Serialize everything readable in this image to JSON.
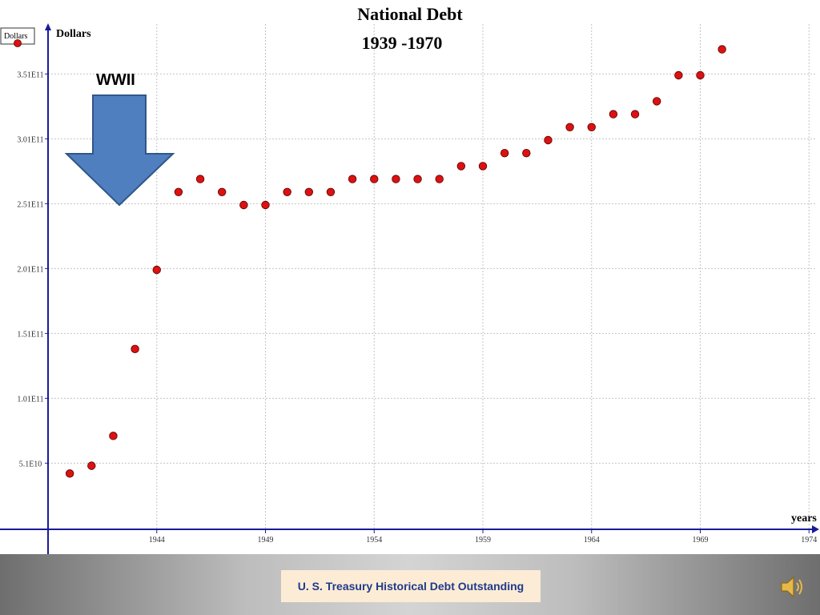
{
  "chart_data": {
    "type": "scatter",
    "title": "National Debt",
    "subtitle": "1939 -1970",
    "ylabel": "Dollars",
    "xlabel": "years",
    "legend": {
      "label": "Dollars",
      "placement": "top-left"
    },
    "xlim": [
      1939,
      1974.5
    ],
    "ylim": [
      0,
      400000000000.0
    ],
    "x_ticks": [
      1944,
      1949,
      1954,
      1959,
      1964,
      1969,
      1974
    ],
    "x_tick_labels": [
      "1944",
      "1949",
      "1954",
      "1959",
      "1964",
      "1969",
      "1974"
    ],
    "y_ticks": [
      51000000000.0,
      101000000000.0,
      151000000000.0,
      201000000000.0,
      251000000000.0,
      301000000000.0,
      351000000000.0
    ],
    "y_tick_labels": [
      "5.1E10",
      "1.01E11",
      "1.51E11",
      "2.01E11",
      "2.51E11",
      "3.01E11",
      "3.51E11"
    ],
    "grid": true,
    "series": [
      {
        "name": "Dollars",
        "color": "#dd1111",
        "x": [
          1940,
          1941,
          1942,
          1943,
          1944,
          1945,
          1946,
          1947,
          1948,
          1949,
          1950,
          1951,
          1952,
          1953,
          1954,
          1955,
          1956,
          1957,
          1958,
          1959,
          1960,
          1961,
          1962,
          1963,
          1964,
          1965,
          1966,
          1967,
          1968,
          1969,
          1970
        ],
        "y": [
          43000000000.0,
          49000000000.0,
          72000000000.0,
          139000000000.0,
          200000000000.0,
          260000000000.0,
          270000000000.0,
          260000000000.0,
          250000000000.0,
          250000000000.0,
          260000000000.0,
          260000000000.0,
          260000000000.0,
          270000000000.0,
          270000000000.0,
          270000000000.0,
          270000000000.0,
          270000000000.0,
          280000000000.0,
          280000000000.0,
          290000000000.0,
          290000000000.0,
          300000000000.0,
          310000000000.0,
          310000000000.0,
          320000000000.0,
          320000000000.0,
          330000000000.0,
          350000000000.0,
          350000000000.0,
          370000000000.0
        ]
      }
    ],
    "annotations": [
      {
        "text": "WWII",
        "type": "down-arrow",
        "points_to_x": 1943,
        "color": "#4f7fbf"
      }
    ]
  },
  "footer": {
    "source": "U. S. Treasury Historical Debt Outstanding",
    "speaker_icon": "speaker-icon"
  }
}
